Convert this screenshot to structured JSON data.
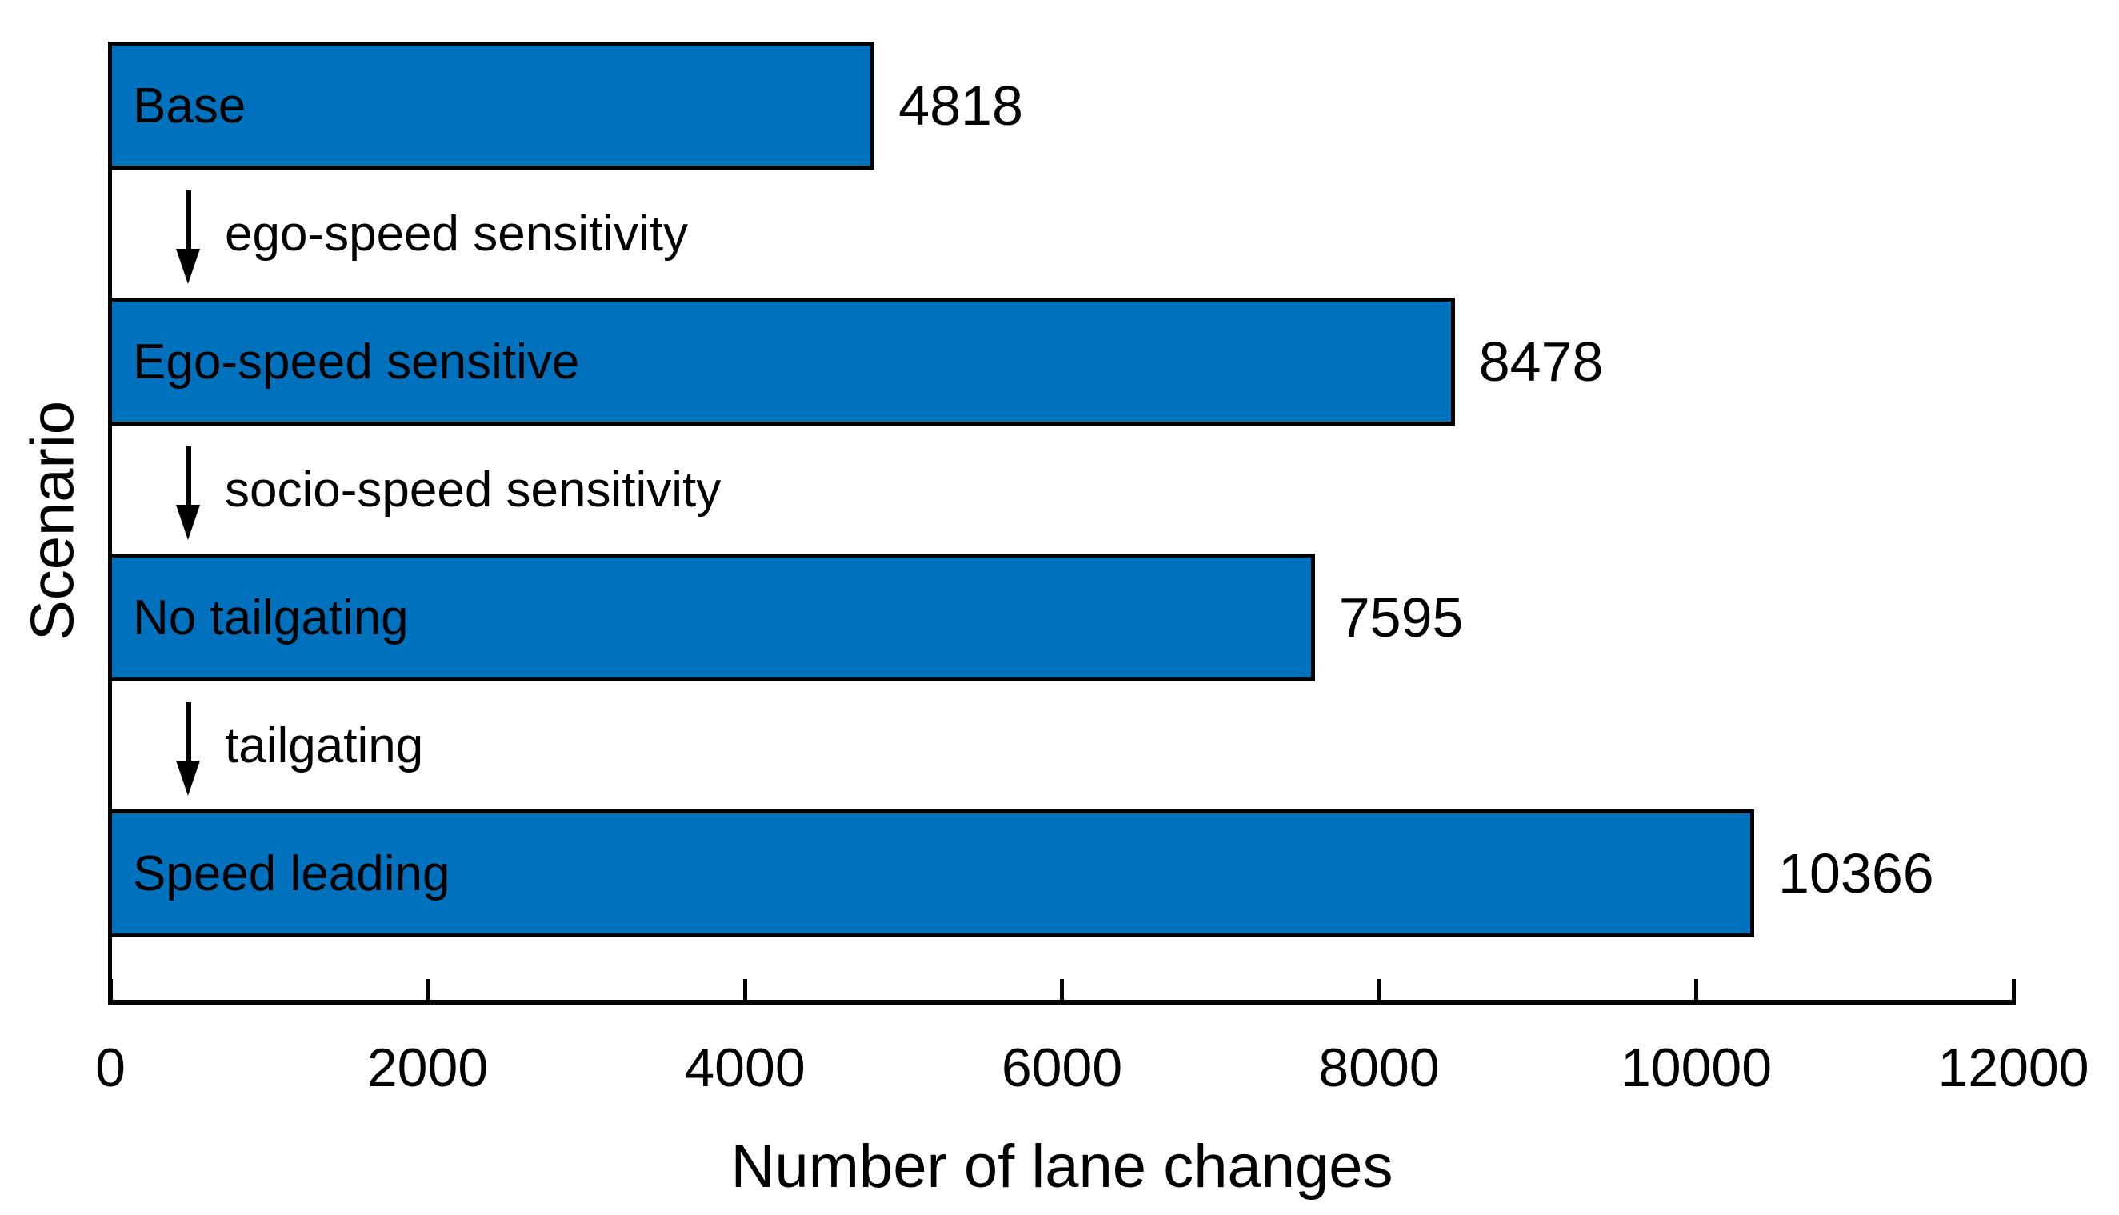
{
  "figure": {
    "background": "#FFFFFF",
    "text_color": "#000000"
  },
  "chart_data": {
    "type": "bar",
    "orientation": "horizontal",
    "title": "",
    "xlabel": "Number of lane changes",
    "ylabel": "Scenario",
    "categories": [
      "Base",
      "Ego-speed sensitive",
      "No tailgating",
      "Speed leading"
    ],
    "values": [
      4818,
      8478,
      7595,
      10366
    ],
    "bar_value_labels": [
      "4818",
      "8478",
      "7595",
      "10366"
    ],
    "xlim": [
      0,
      12000
    ],
    "xticks": [
      0,
      2000,
      4000,
      6000,
      8000,
      10000,
      12000
    ],
    "xtick_labels": [
      "0",
      "2000",
      "4000",
      "6000",
      "8000",
      "10000",
      "12000"
    ],
    "grid": false,
    "legend": null,
    "bar_color": "#0072BD",
    "bar_edge_color": "#000000",
    "axis_color": "#000000",
    "annotations": [
      {
        "type": "arrow-down",
        "label": "ego-speed sensitivity",
        "from_category": "Base",
        "to_category": "Ego-speed sensitive"
      },
      {
        "type": "arrow-down",
        "label": "socio-speed sensitivity",
        "from_category": "Ego-speed sensitive",
        "to_category": "No tailgating"
      },
      {
        "type": "arrow-down",
        "label": "tailgating",
        "from_category": "No tailgating",
        "to_category": "Speed leading"
      }
    ]
  }
}
